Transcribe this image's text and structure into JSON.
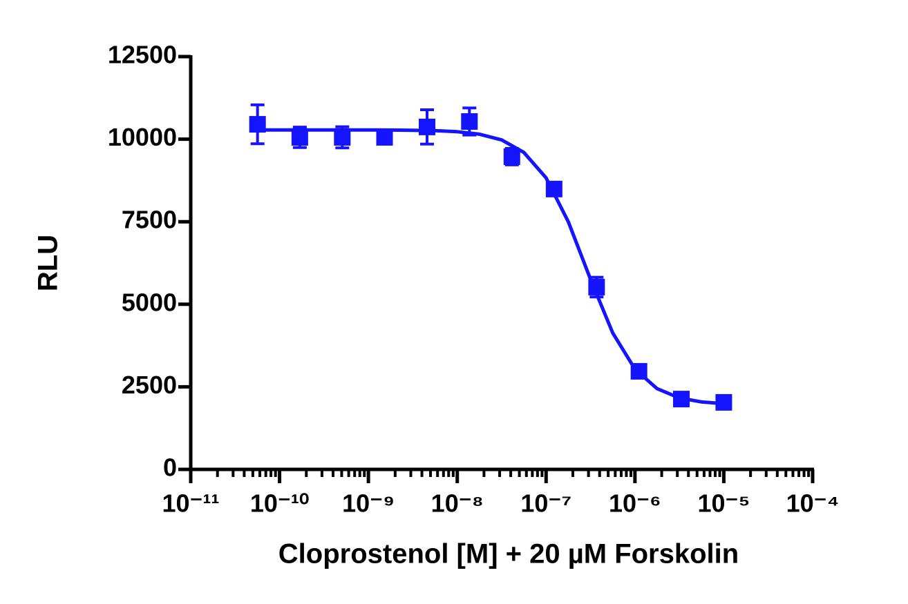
{
  "chart_data": {
    "type": "dose-response",
    "x_label": "Cloprostenol [M] + 20  µM Forskolin",
    "y_label": "RLU",
    "color": "#1414ff",
    "log_x": true,
    "minor_ticks": true,
    "xlim": [
      1e-11,
      0.0001
    ],
    "xticks": [
      {
        "value": 1e-11,
        "label": "10⁻¹¹"
      },
      {
        "value": 1e-10,
        "label": "10⁻¹⁰"
      },
      {
        "value": 1e-09,
        "label": "10⁻⁹"
      },
      {
        "value": 1e-08,
        "label": "10⁻⁸"
      },
      {
        "value": 1e-07,
        "label": "10⁻⁷"
      },
      {
        "value": 1e-06,
        "label": "10⁻⁶"
      },
      {
        "value": 1e-05,
        "label": "10⁻⁵"
      },
      {
        "value": 0.0001,
        "label": "10⁻⁴"
      }
    ],
    "ylim": [
      0,
      12500
    ],
    "yticks": [
      0,
      2500,
      5000,
      7500,
      10000,
      12500
    ],
    "x": [
      5.65e-11,
      1.69e-10,
      5.08e-10,
      1.52e-09,
      4.57e-09,
      1.37e-08,
      4.12e-08,
      1.23e-07,
      3.7e-07,
      1.11e-06,
      3.33e-06,
      1e-05
    ],
    "values": [
      10450,
      10055,
      10055,
      10055,
      10370,
      10535,
      9470,
      8490,
      5520,
      2970,
      2130,
      2030
    ],
    "errors": [
      590,
      310,
      320,
      100,
      520,
      410,
      250,
      150,
      300,
      100,
      50,
      50
    ],
    "curve": {
      "x": [
        5.623e-11,
        1e-10,
        1.778e-10,
        3.162e-10,
        5.623e-10,
        1e-09,
        1.778e-09,
        3.162e-09,
        5.623e-09,
        1e-08,
        1.778e-08,
        3.162e-08,
        5.623e-08,
        1e-07,
        1.778e-07,
        3.162e-07,
        5.623e-07,
        1e-06,
        1.778e-06,
        3.162e-06,
        5.623e-06,
        1e-05
      ],
      "values": [
        10280,
        10280,
        10280,
        10280,
        10279,
        10278,
        10276,
        10270,
        10257,
        10225,
        10150,
        9978,
        9599,
        8827,
        7500,
        5755,
        4132,
        3035,
        2444,
        2166,
        2042,
        1989
      ]
    }
  }
}
